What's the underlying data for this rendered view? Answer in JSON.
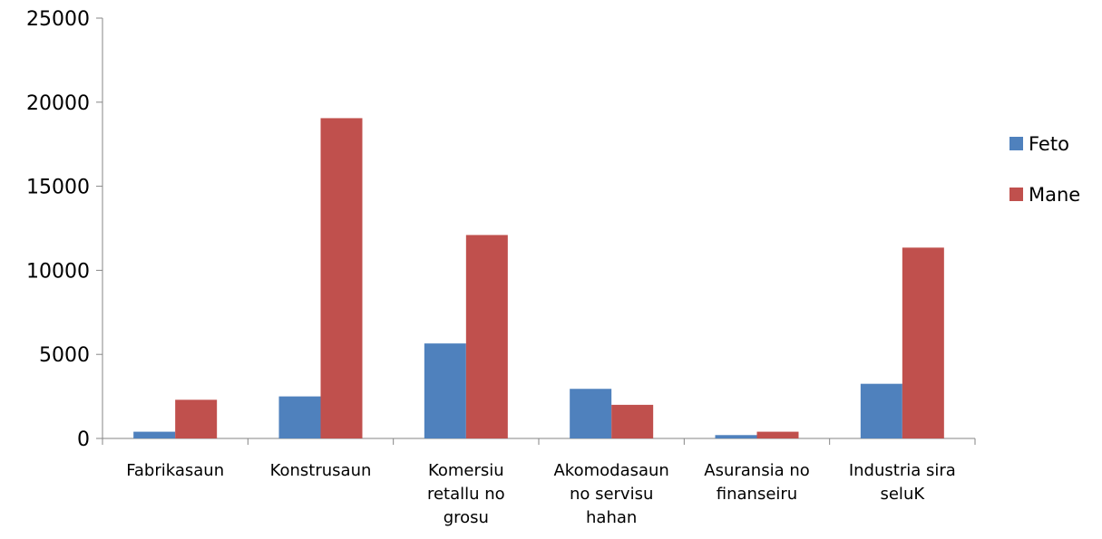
{
  "chart_data": {
    "type": "bar",
    "title": "",
    "xlabel": "",
    "ylabel": "",
    "categories": [
      [
        "Fabrikasaun"
      ],
      [
        "Konstrusaun"
      ],
      [
        "Komersiu",
        "retallu no",
        "grosu"
      ],
      [
        "Akomodasaun",
        "no servisu",
        "hahan"
      ],
      [
        "Asuransia no",
        "finanseiru"
      ],
      [
        "Industria sira",
        "seluK"
      ]
    ],
    "series": [
      {
        "name": "Feto",
        "color": "#4f81bd",
        "values": [
          400,
          2500,
          5650,
          2950,
          200,
          3250
        ]
      },
      {
        "name": "Mane",
        "color": "#c0504d",
        "values": [
          2300,
          19050,
          12100,
          2000,
          400,
          11350
        ]
      }
    ],
    "ylim": [
      0,
      25000
    ],
    "yticks": [
      "0",
      "5000",
      "10000",
      "15000",
      "20000",
      "25000"
    ],
    "grid": false,
    "legend": "right"
  }
}
